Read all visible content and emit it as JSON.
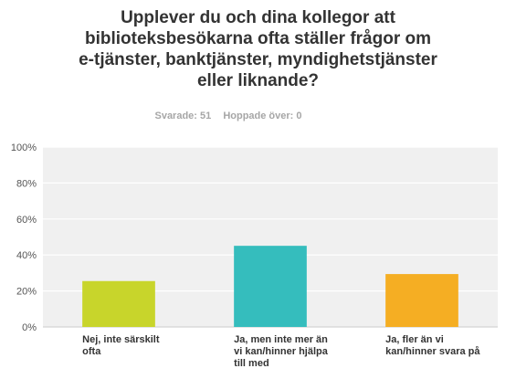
{
  "question": {
    "title": "Upplever du och dina kollegor att\nbiblioteksbesökarna ofta ställer frågor om\ne-tjänster, banktjänster, myndighetstjänster\neller liknande?",
    "answered_label": "Svarade: 51",
    "skipped_label": "Hoppade över: 0"
  },
  "chart_data": {
    "type": "bar",
    "title": "Upplever du och dina kollegor att biblioteksbesökarna ofta ställer frågor om e-tjänster, banktjänster, myndighetstjänster eller liknande?",
    "categories": [
      "Nej, inte särskilt ofta",
      "Ja, men inte mer än vi kan/hinner hjälpa till med",
      "Ja, fler än vi kan/hinner svara på"
    ],
    "category_lines": [
      [
        "Nej, inte särskilt",
        "ofta"
      ],
      [
        "Ja, men inte mer än",
        "vi kan/hinner hjälpa",
        "till med"
      ],
      [
        "Ja, fler än vi",
        "kan/hinner svara på"
      ]
    ],
    "values": [
      25.5,
      45.1,
      29.4
    ],
    "colors": [
      "#c8d52b",
      "#35bdbd",
      "#f5ae23"
    ],
    "ylim": [
      0,
      100
    ],
    "yticks": [
      "0%",
      "20%",
      "40%",
      "60%",
      "80%",
      "100%"
    ],
    "grid": true,
    "xlabel": "",
    "ylabel": ""
  }
}
